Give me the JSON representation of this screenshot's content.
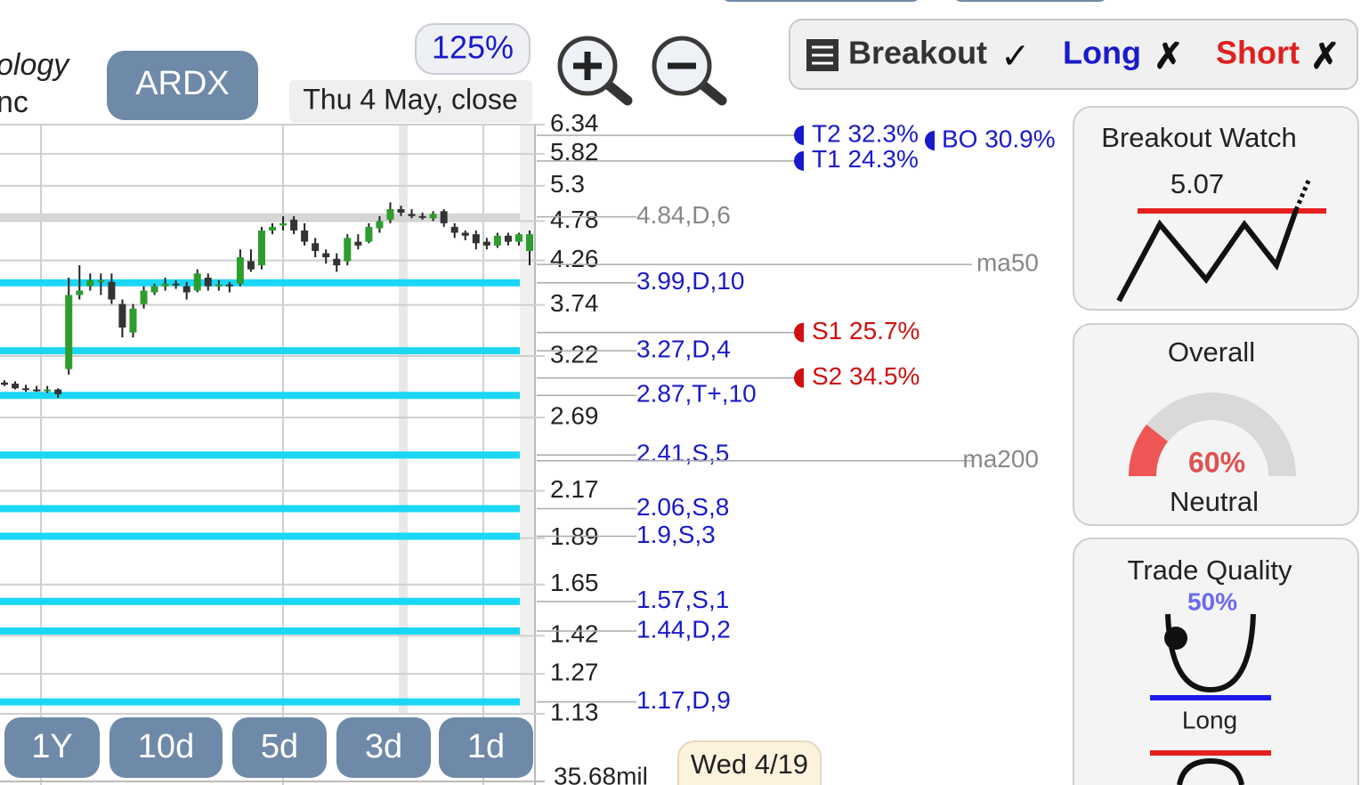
{
  "header": {
    "company_line1": "ology",
    "company_line2": "nc",
    "ticker": "ARDX",
    "zoom": "125%",
    "date": "Thu 4 May, close"
  },
  "chart": {
    "scale": "log",
    "ylim": [
      1.13,
      6.34
    ],
    "yticks": [
      6.34,
      5.82,
      5.3,
      4.78,
      4.26,
      3.74,
      3.22,
      2.69,
      2.17,
      1.89,
      1.65,
      1.42,
      1.27,
      1.13
    ],
    "candles": {
      "open": [
        2.98,
        2.97,
        2.93,
        2.92,
        2.91,
        2.92,
        3.1,
        3.85,
        3.95,
        4.0,
        4.0,
        3.75,
        3.45,
        3.75,
        3.88,
        3.95,
        3.98,
        3.95,
        3.9,
        4.05,
        3.95,
        3.97,
        3.98,
        4.25,
        4.2,
        4.65,
        4.72,
        4.8,
        4.65,
        4.48,
        4.35,
        4.28,
        4.25,
        4.5,
        4.5,
        4.68,
        4.8,
        4.95,
        4.88,
        4.85,
        4.82,
        4.92,
        4.7,
        4.62,
        4.6,
        4.5,
        4.45,
        4.58,
        4.5,
        4.38
      ],
      "high": [
        3.0,
        2.99,
        2.96,
        2.95,
        2.95,
        2.93,
        4.05,
        4.2,
        4.1,
        4.1,
        4.1,
        3.8,
        3.75,
        3.95,
        3.98,
        4.05,
        4.02,
        4.0,
        4.15,
        4.1,
        4.02,
        4.0,
        4.4,
        4.4,
        4.7,
        4.75,
        4.85,
        4.85,
        4.75,
        4.55,
        4.4,
        4.35,
        4.6,
        4.6,
        4.75,
        4.85,
        5.05,
        5.0,
        4.95,
        4.9,
        4.92,
        4.95,
        4.75,
        4.65,
        4.65,
        4.55,
        4.62,
        4.62,
        4.62,
        4.65
      ],
      "low": [
        2.95,
        2.92,
        2.9,
        2.9,
        2.89,
        2.85,
        3.05,
        3.8,
        3.9,
        3.85,
        3.75,
        3.4,
        3.4,
        3.7,
        3.85,
        3.9,
        3.92,
        3.8,
        3.88,
        3.9,
        3.9,
        3.88,
        3.95,
        4.12,
        4.15,
        4.6,
        4.65,
        4.6,
        4.45,
        4.3,
        4.22,
        4.12,
        4.2,
        4.4,
        4.48,
        4.62,
        4.75,
        4.85,
        4.82,
        4.8,
        4.78,
        4.7,
        4.55,
        4.52,
        4.4,
        4.4,
        4.42,
        4.45,
        4.45,
        4.2
      ],
      "close": [
        2.96,
        2.93,
        2.92,
        2.91,
        2.92,
        2.88,
        3.85,
        3.9,
        4.02,
        4.02,
        3.8,
        3.5,
        3.7,
        3.9,
        3.95,
        3.98,
        3.96,
        3.88,
        4.1,
        3.95,
        3.97,
        3.95,
        4.3,
        4.15,
        4.65,
        4.7,
        4.75,
        4.65,
        4.5,
        4.38,
        4.3,
        4.2,
        4.55,
        4.45,
        4.7,
        4.78,
        4.95,
        4.9,
        4.85,
        4.83,
        4.88,
        4.75,
        4.62,
        4.58,
        4.48,
        4.45,
        4.58,
        4.5,
        4.6,
        4.6
      ],
      "up_color": "#2e9c2e",
      "down_color": "#333333"
    },
    "levels": [
      {
        "value": 4.84,
        "label": "4.84,D,6",
        "color": "#d6d6d6",
        "label_color": "#888888"
      },
      {
        "value": 3.99,
        "label": "3.99,D,10",
        "color": "#1ad7f5",
        "label_color": "#1a1acc"
      },
      {
        "value": 3.27,
        "label": "3.27,D,4",
        "color": "#1ad7f5",
        "label_color": "#1a1acc"
      },
      {
        "value": 2.87,
        "label": "2.87,T+,10",
        "color": "#1ad7f5",
        "label_color": "#1a1acc"
      },
      {
        "value": 2.41,
        "label": "2.41,S,5",
        "color": "#1ad7f5",
        "label_color": "#1a1acc"
      },
      {
        "value": 2.06,
        "label": "2.06,S,8",
        "color": "#1ad7f5",
        "label_color": "#1a1acc"
      },
      {
        "value": 1.9,
        "label": "1.9,S,3",
        "color": "#1ad7f5",
        "label_color": "#1a1acc"
      },
      {
        "value": 1.57,
        "label": "1.57,S,1",
        "color": "#1ad7f5",
        "label_color": "#1a1acc"
      },
      {
        "value": 1.44,
        "label": "1.44,D,2",
        "color": "#1ad7f5",
        "label_color": "#1a1acc"
      },
      {
        "value": 1.17,
        "label": "1.17,D,9",
        "color": "#1ad7f5",
        "label_color": "#1a1acc"
      }
    ],
    "targets": [
      {
        "value": 6.145,
        "label": "T2 32.3%",
        "color": "#1a1acc"
      },
      {
        "value": 5.7,
        "label": "T1 24.3%",
        "color": "#1a1acc"
      },
      {
        "value": 3.45,
        "label": "S1 25.7%",
        "color": "#d01010"
      },
      {
        "value": 3.02,
        "label": "S2 34.5%",
        "color": "#d01010"
      }
    ],
    "breakout_target": {
      "value": 6.05,
      "label": "BO 30.9%",
      "color": "#1a1acc"
    },
    "moving_averages": [
      {
        "value": 4.21,
        "label": "ma50"
      },
      {
        "value": 2.37,
        "label": "ma200"
      }
    ],
    "volume_label": "35.68mil",
    "hover_date": "Wed 4/19"
  },
  "range_buttons": [
    "1Y",
    "10d",
    "5d",
    "3d",
    "1d"
  ],
  "status_bar": {
    "breakout": "Breakout",
    "breakout_mark": "✓",
    "long": "Long",
    "long_mark": "✗",
    "short": "Short",
    "short_mark": "✗"
  },
  "breakout_watch": {
    "title": "Breakout Watch",
    "value": "5.07"
  },
  "overall": {
    "title": "Overall",
    "score": "60%",
    "rating": "Neutral"
  },
  "trade_quality": {
    "title": "Trade Quality",
    "score": "50%",
    "direction": "Long"
  }
}
